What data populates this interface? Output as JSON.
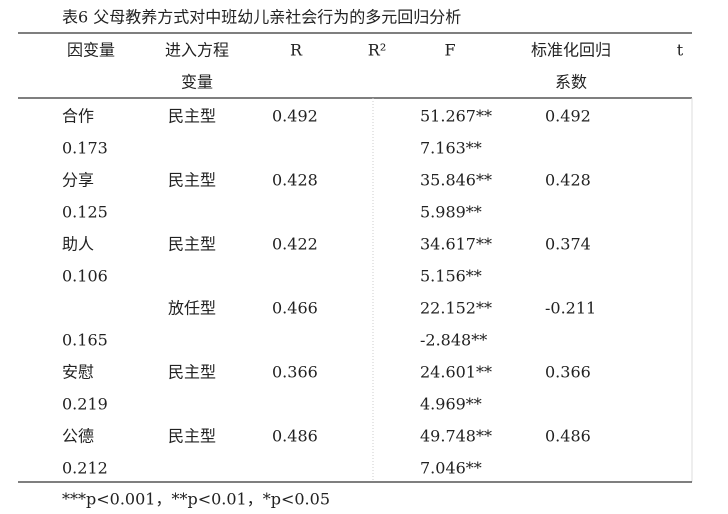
{
  "title": "表6 父母教养方式对中班幼儿亲社会行为的多元回归分析",
  "table": {
    "header": [
      [
        "因变量",
        "进入方程",
        "R",
        "R²",
        "F",
        "标准化回归",
        "t"
      ],
      [
        null,
        "变量",
        null,
        null,
        null,
        "系数",
        null
      ]
    ],
    "rows": [
      [
        "合作",
        "民主型",
        "0.492",
        null,
        "51.267**",
        "0.492",
        null
      ],
      [
        "0.173",
        null,
        null,
        null,
        "7.163**",
        null,
        null
      ],
      [
        "分享",
        "民主型",
        "0.428",
        null,
        "35.846**",
        "0.428",
        null
      ],
      [
        "0.125",
        null,
        null,
        null,
        "5.989**",
        null,
        null
      ],
      [
        "助人",
        "民主型",
        "0.422",
        null,
        "34.617**",
        "0.374",
        null
      ],
      [
        "0.106",
        null,
        null,
        null,
        "5.156**",
        null,
        null
      ],
      [
        null,
        "放任型",
        "0.466",
        null,
        "22.152**",
        "-0.211",
        null
      ],
      [
        "0.165",
        null,
        null,
        null,
        "-2.848**",
        null,
        null
      ],
      [
        "安慰",
        "民主型",
        "0.366",
        null,
        "24.601**",
        "0.366",
        null
      ],
      [
        "0.219",
        null,
        null,
        null,
        "4.969**",
        null,
        null
      ],
      [
        "公德",
        "民主型",
        "0.486",
        null,
        "49.748**",
        "0.486",
        null
      ],
      [
        "0.212",
        null,
        null,
        null,
        "7.046**",
        null,
        null
      ]
    ]
  },
  "footnote": "***p<0.001，**p<0.01，*p<0.05"
}
